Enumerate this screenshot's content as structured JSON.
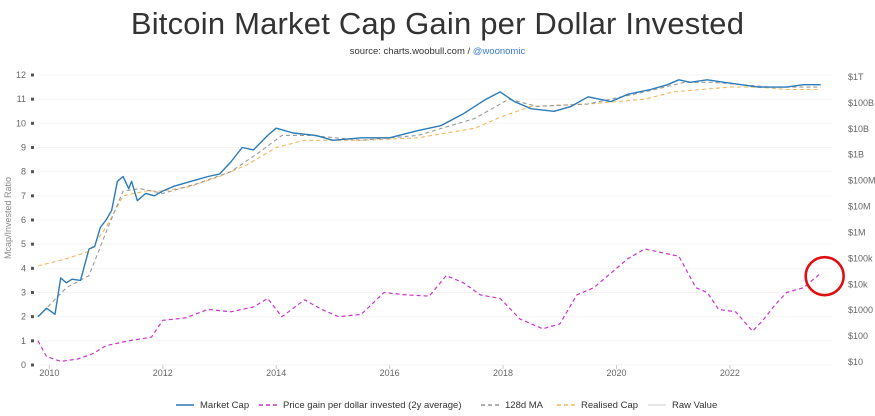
{
  "title": "Bitcoin Market Cap Gain per Dollar Invested",
  "source_prefix": "source: charts.woobull.com /",
  "source_handle": "@woonomic",
  "chart_data": {
    "type": "line",
    "title": "Bitcoin Market Cap Gain per Dollar Invested",
    "xlabel": "",
    "ylabel": "Mcap/Invested Ratio",
    "x_ticks": [
      "2010",
      "2012",
      "2014",
      "2016",
      "2018",
      "2020",
      "2022"
    ],
    "xlim": [
      2009.8,
      2023.8
    ],
    "ylim_left": [
      0,
      12
    ],
    "y_ticks_left": [
      "0",
      "1",
      "2",
      "3",
      "4",
      "5",
      "6",
      "7",
      "8",
      "9",
      "10",
      "11",
      "12"
    ],
    "y_ticks_right": [
      "$1T",
      "$100B",
      "$10B",
      "$1B",
      "$100M",
      "$10M",
      "$1M",
      "$100k",
      "$10k",
      "$1000",
      "$100",
      "$10"
    ],
    "legend": [
      "Market Cap",
      "Price gain per dollar invested (2y average)",
      "128d MA",
      "Realised Cap",
      "Raw Value"
    ],
    "colors": {
      "market_cap": "#2b7bb9",
      "price_gain": "#cc33cc",
      "ma": "#999999",
      "realised": "#f0b860",
      "raw": "#dddddd",
      "annotation": "#dd1111"
    },
    "series": [
      {
        "name": "Market Cap",
        "x": [
          2009.8,
          2009.95,
          2010.1,
          2010.2,
          2010.3,
          2010.4,
          2010.55,
          2010.7,
          2010.8,
          2010.9,
          2011.0,
          2011.1,
          2011.2,
          2011.3,
          2011.4,
          2011.45,
          2011.55,
          2011.7,
          2011.85,
          2012.0,
          2012.2,
          2012.5,
          2012.8,
          2013.0,
          2013.2,
          2013.4,
          2013.6,
          2013.85,
          2014.0,
          2014.3,
          2014.7,
          2015.0,
          2015.5,
          2016.0,
          2016.5,
          2016.9,
          2017.3,
          2017.7,
          2017.95,
          2018.2,
          2018.5,
          2018.9,
          2019.2,
          2019.5,
          2019.9,
          2020.2,
          2020.6,
          2020.9,
          2021.1,
          2021.3,
          2021.6,
          2021.9,
          2022.2,
          2022.5,
          2022.8,
          2023.0,
          2023.3,
          2023.6
        ],
        "values": [
          2.0,
          2.35,
          2.1,
          3.6,
          3.4,
          3.55,
          3.5,
          4.8,
          4.9,
          5.7,
          6.0,
          6.4,
          7.6,
          7.8,
          7.3,
          7.6,
          6.8,
          7.1,
          7.0,
          7.2,
          7.4,
          7.6,
          7.8,
          7.9,
          8.4,
          9.0,
          8.9,
          9.5,
          9.8,
          9.6,
          9.5,
          9.3,
          9.4,
          9.4,
          9.7,
          9.9,
          10.4,
          11.0,
          11.3,
          10.9,
          10.6,
          10.5,
          10.7,
          11.1,
          10.9,
          11.2,
          11.4,
          11.6,
          11.8,
          11.7,
          11.8,
          11.7,
          11.6,
          11.5,
          11.5,
          11.5,
          11.6,
          11.6
        ]
      },
      {
        "name": "Realised Cap",
        "x": [
          2009.8,
          2010.3,
          2010.7,
          2011.0,
          2011.3,
          2011.7,
          2012.0,
          2012.5,
          2013.0,
          2013.5,
          2014.0,
          2014.5,
          2015.5,
          2016.5,
          2017.5,
          2018.0,
          2018.5,
          2019.5,
          2020.5,
          2021.0,
          2021.5,
          2022.0,
          2022.5,
          2023.0,
          2023.6
        ],
        "values": [
          4.1,
          4.4,
          4.7,
          5.7,
          7.0,
          7.2,
          7.2,
          7.4,
          7.8,
          8.3,
          9.0,
          9.3,
          9.3,
          9.4,
          9.8,
          10.3,
          10.7,
          10.8,
          11.0,
          11.3,
          11.4,
          11.5,
          11.5,
          11.4,
          11.4
        ]
      },
      {
        "name": "128d MA",
        "x": [
          2009.8,
          2010.3,
          2010.7,
          2011.0,
          2011.3,
          2011.6,
          2012.0,
          2012.6,
          2013.2,
          2013.7,
          2014.1,
          2014.6,
          2015.5,
          2016.5,
          2017.5,
          2018.1,
          2018.6,
          2019.5,
          2020.5,
          2021.2,
          2021.7,
          2022.2,
          2022.7,
          2023.2,
          2023.6
        ],
        "values": [
          2.0,
          3.2,
          3.7,
          5.5,
          7.2,
          7.3,
          7.1,
          7.5,
          8.0,
          8.8,
          9.5,
          9.5,
          9.3,
          9.5,
          10.2,
          11.0,
          10.7,
          10.8,
          11.3,
          11.7,
          11.7,
          11.6,
          11.5,
          11.5,
          11.5
        ]
      },
      {
        "name": "Price gain per dollar invested (2y average)",
        "x": [
          2009.8,
          2009.95,
          2010.2,
          2010.5,
          2010.75,
          2011.0,
          2011.4,
          2011.8,
          2012.0,
          2012.4,
          2012.8,
          2013.2,
          2013.6,
          2013.85,
          2014.1,
          2014.5,
          2014.8,
          2015.1,
          2015.5,
          2015.9,
          2016.3,
          2016.7,
          2017.0,
          2017.3,
          2017.6,
          2017.95,
          2018.3,
          2018.7,
          2019.0,
          2019.3,
          2019.6,
          2019.9,
          2020.2,
          2020.5,
          2020.7,
          2021.1,
          2021.4,
          2021.6,
          2021.8,
          2022.1,
          2022.4,
          2022.6,
          2022.8,
          2023.0,
          2023.3,
          2023.6
        ],
        "values": [
          1.0,
          0.35,
          0.15,
          0.25,
          0.45,
          0.8,
          1.0,
          1.15,
          1.85,
          1.95,
          2.3,
          2.2,
          2.4,
          2.75,
          2.0,
          2.7,
          2.3,
          2.0,
          2.1,
          3.0,
          2.9,
          2.85,
          3.7,
          3.4,
          2.9,
          2.75,
          1.9,
          1.5,
          1.7,
          2.9,
          3.2,
          3.8,
          4.4,
          4.8,
          4.7,
          4.5,
          3.2,
          3.0,
          2.3,
          2.2,
          1.4,
          1.9,
          2.5,
          3.0,
          3.2,
          3.8
        ]
      }
    ],
    "annotation": "circle"
  }
}
